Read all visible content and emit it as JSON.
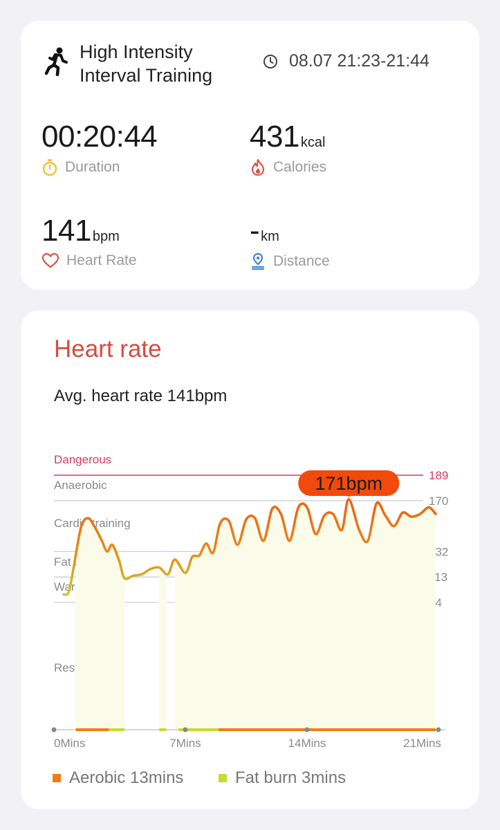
{
  "workout": {
    "title_line1": "High Intensity",
    "title_line2": "Interval Training",
    "time_range": "08.07 21:23-21:44"
  },
  "metrics": {
    "duration": {
      "value": "00:20:44",
      "label": "Duration"
    },
    "calories": {
      "value": "431",
      "unit": "kcal",
      "label": "Calories"
    },
    "heart_rate": {
      "value": "141",
      "unit": "bpm",
      "label": "Heart Rate"
    },
    "distance": {
      "value": "-",
      "unit": "km",
      "label": "Distance"
    }
  },
  "heart_rate_section": {
    "title": "Heart rate",
    "average": "Avg. heart rate 141bpm"
  },
  "colors": {
    "accent_red": "#d84a3e",
    "aerobic": "#f07c14",
    "fat_burn": "#c9d935",
    "dangerous": "#d33b5e",
    "peak_badge": "#f24a0c",
    "duration_icon": "#f1c232",
    "distance_icon": "#3f8ad6"
  },
  "chart_data": {
    "type": "line",
    "y_unit": "bpm",
    "ylim": [
      60,
      189
    ],
    "zones": [
      {
        "name": "Dangerous",
        "bpm": 189
      },
      {
        "name": "Anaerobic",
        "bpm": 170
      },
      {
        "name": "Cardio training",
        "bpm": 132
      },
      {
        "name": "Fat burning",
        "bpm": 113
      },
      {
        "name": "Warm up",
        "bpm": 94
      },
      {
        "name": "Resting",
        "bpm": null
      }
    ],
    "threshold_labels": [
      "189",
      "170",
      "132",
      "113",
      "94"
    ],
    "x_ticks": [
      {
        "label": "0Mins",
        "min": 0
      },
      {
        "label": "7Mins",
        "min": 7
      },
      {
        "label": "14Mins",
        "min": 14
      },
      {
        "label": "21Mins",
        "min": 21
      }
    ],
    "peak": {
      "label": "171bpm",
      "min": 16.4,
      "bpm": 171
    },
    "series": [
      {
        "x": [
          0,
          0.3,
          0.6,
          1.0,
          1.4,
          1.8,
          2.2,
          2.5,
          2.8,
          3.2,
          3.5,
          4.0,
          4.5,
          5.0,
          5.5,
          6.0,
          6.4,
          7.0,
          7.4,
          7.8,
          8.2,
          8.6,
          9.0,
          9.5,
          10.0,
          10.5,
          11.0,
          11.5,
          12.0,
          12.5,
          13.0,
          13.5,
          14.0,
          14.5,
          15.0,
          15.5,
          16.0,
          16.4,
          17.0,
          17.5,
          18.0,
          18.5,
          19.0,
          19.5,
          20.0,
          20.5,
          21.0,
          21.4
        ],
        "y": [
          100,
          102,
          122,
          150,
          157,
          150,
          140,
          132,
          137,
          125,
          112,
          114,
          115,
          119,
          120,
          115,
          126,
          116,
          128,
          129,
          138,
          131,
          153,
          155,
          137,
          156,
          157,
          140,
          164,
          160,
          140,
          165,
          165,
          145,
          159,
          160,
          148,
          171,
          148,
          140,
          168,
          159,
          151,
          161,
          158,
          160,
          165,
          160
        ]
      }
    ]
  },
  "legend": [
    {
      "name": "Aerobic 13mins"
    },
    {
      "name": "Fat burn 3mins"
    }
  ]
}
